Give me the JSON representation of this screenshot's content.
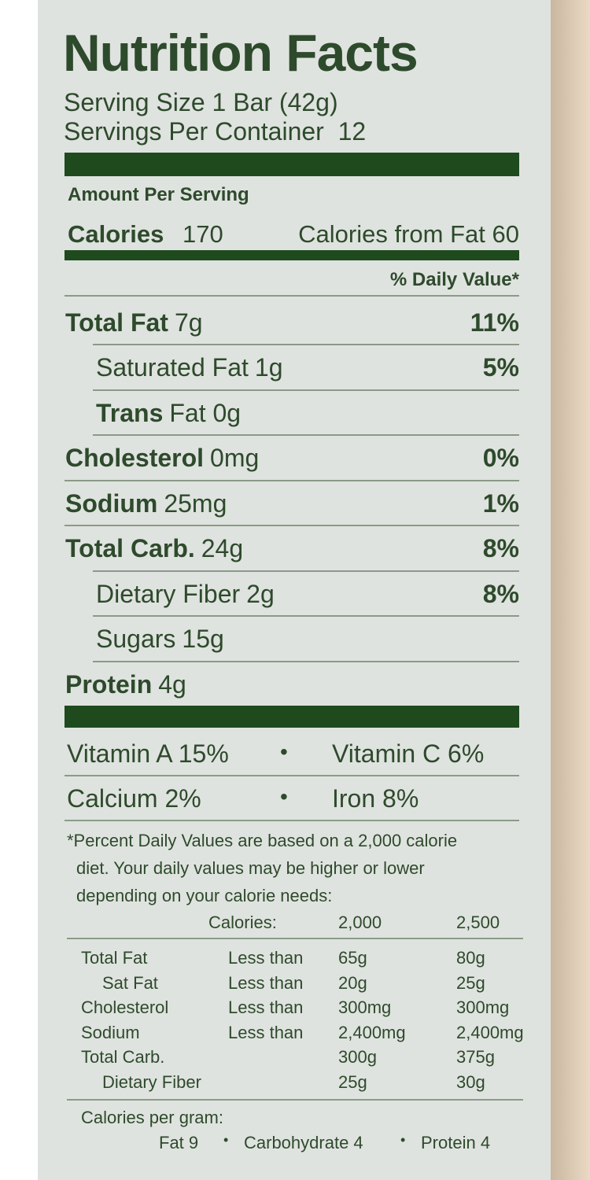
{
  "title": "Nutrition Facts",
  "serving_size": "Serving Size 1 Bar (42g)",
  "servings_per_container": "Servings Per Container  12",
  "amount_per_serving": "Amount Per Serving",
  "calories": {
    "label": "Calories",
    "value": "170",
    "from_fat": "Calories from Fat 60"
  },
  "daily_value_header": "% Daily Value*",
  "nutrients": [
    {
      "name": "Total Fat",
      "amount": "7g",
      "dv": "11%",
      "bold": true,
      "indent": false
    },
    {
      "name": "Saturated Fat",
      "amount": "1g",
      "dv": "5%",
      "bold": false,
      "indent": true
    },
    {
      "name": "Trans",
      "amount": "Fat 0g",
      "bold": true,
      "indent": true
    },
    {
      "name": "Cholesterol",
      "amount": "0mg",
      "dv": "0%",
      "bold": true,
      "indent": false
    },
    {
      "name": "Sodium",
      "amount": "25mg",
      "dv": "1%",
      "bold": true,
      "indent": false
    },
    {
      "name": "Total Carb.",
      "amount": "24g",
      "dv": "8%",
      "bold": true,
      "indent": false
    },
    {
      "name": "Dietary Fiber",
      "amount": "2g",
      "dv": "8%",
      "bold": false,
      "indent": true
    },
    {
      "name": "Sugars",
      "amount": "15g",
      "bold": false,
      "indent": true
    },
    {
      "name": "Protein",
      "amount": "4g",
      "bold": true,
      "indent": false
    }
  ],
  "vitamins": [
    [
      "Vitamin A 15%",
      "Vitamin C 6%"
    ],
    [
      "Calcium 2%",
      "Iron 8%"
    ]
  ],
  "footnote": [
    "*Percent Daily Values are based on a 2,000 calorie",
    "diet. Your daily values may be higher or lower",
    "depending on your calorie needs:"
  ],
  "table": {
    "header": [
      "Calories:",
      "2,000",
      "2,500"
    ],
    "rows": [
      {
        "nutrient": "Total Fat",
        "limit": "Less than",
        "v2000": "65g",
        "v2500": "80g",
        "indent": false
      },
      {
        "nutrient": "Sat Fat",
        "limit": "Less than",
        "v2000": "20g",
        "v2500": "25g",
        "indent": true
      },
      {
        "nutrient": "Cholesterol",
        "limit": "Less than",
        "v2000": "300mg",
        "v2500": "300mg",
        "indent": false
      },
      {
        "nutrient": "Sodium",
        "limit": "Less than",
        "v2000": "2,400mg",
        "v2500": "2,400mg",
        "indent": false
      },
      {
        "nutrient": "Total Carb.",
        "v2000": "300g",
        "v2500": "375g",
        "indent": false
      },
      {
        "nutrient": "Dietary Fiber",
        "v2000": "25g",
        "v2500": "30g",
        "indent": true
      }
    ]
  },
  "calories_per_gram": {
    "label": "Calories per gram:",
    "items": [
      "Fat 9",
      "Carbohydrate 4",
      "Protein 4"
    ]
  }
}
